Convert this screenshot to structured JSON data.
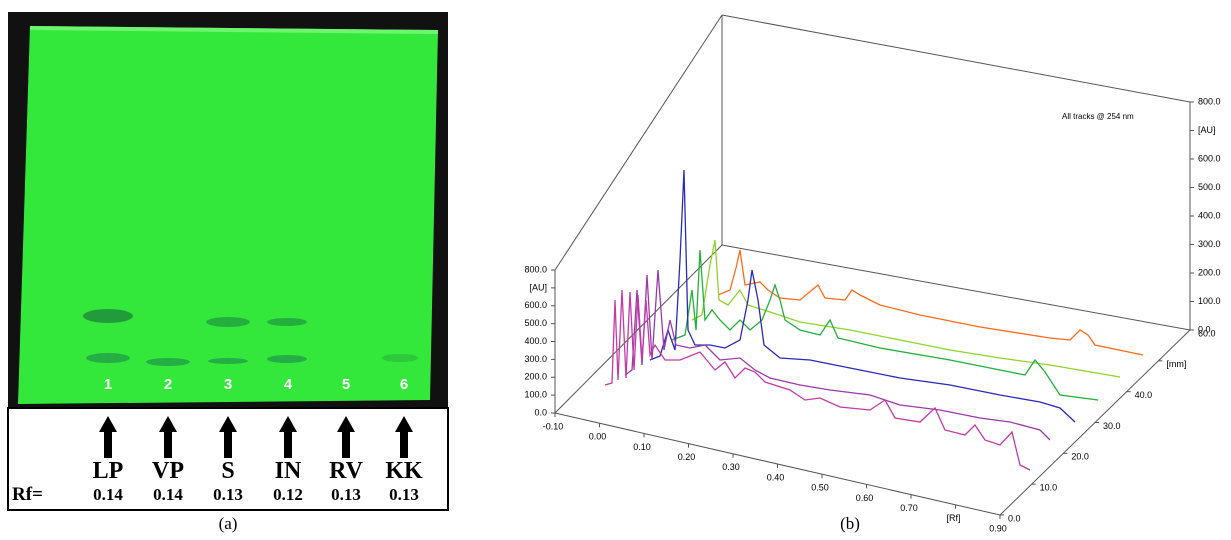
{
  "panel_a": {
    "lanes": [
      "1",
      "2",
      "3",
      "4",
      "5",
      "6"
    ],
    "samples": [
      "LP",
      "VP",
      "S",
      "IN",
      "RV",
      "KK"
    ],
    "rf_label": "Rf=",
    "rf_values": [
      "0.14",
      "0.14",
      "0.13",
      "0.12",
      "0.13",
      "0.13"
    ],
    "caption": "(a)"
  },
  "panel_b": {
    "legend": "All tracks @ 254 nm",
    "left_axis": {
      "ticks": [
        "800.0",
        "[AU]",
        "600.0",
        "500.0",
        "400.0",
        "300.0",
        "200.0",
        "100.0",
        "0.0"
      ]
    },
    "right_axis": {
      "ticks": [
        "800.0",
        "[AU]",
        "600.0",
        "500.0",
        "400.0",
        "300.0",
        "200.0",
        "100.0",
        "0.0"
      ]
    },
    "x_axis": {
      "ticks": [
        "-0.10",
        "0.00",
        "0.10",
        "0.20",
        "0.30",
        "0.40",
        "0.50",
        "0.60",
        "0.70",
        "[Rf]",
        "0.90"
      ]
    },
    "depth_axis": {
      "ticks": [
        "0.0",
        "10.0",
        "20.0",
        "30.0",
        "40.0",
        "[mm]",
        "60.0"
      ]
    },
    "caption": "(b)"
  }
}
